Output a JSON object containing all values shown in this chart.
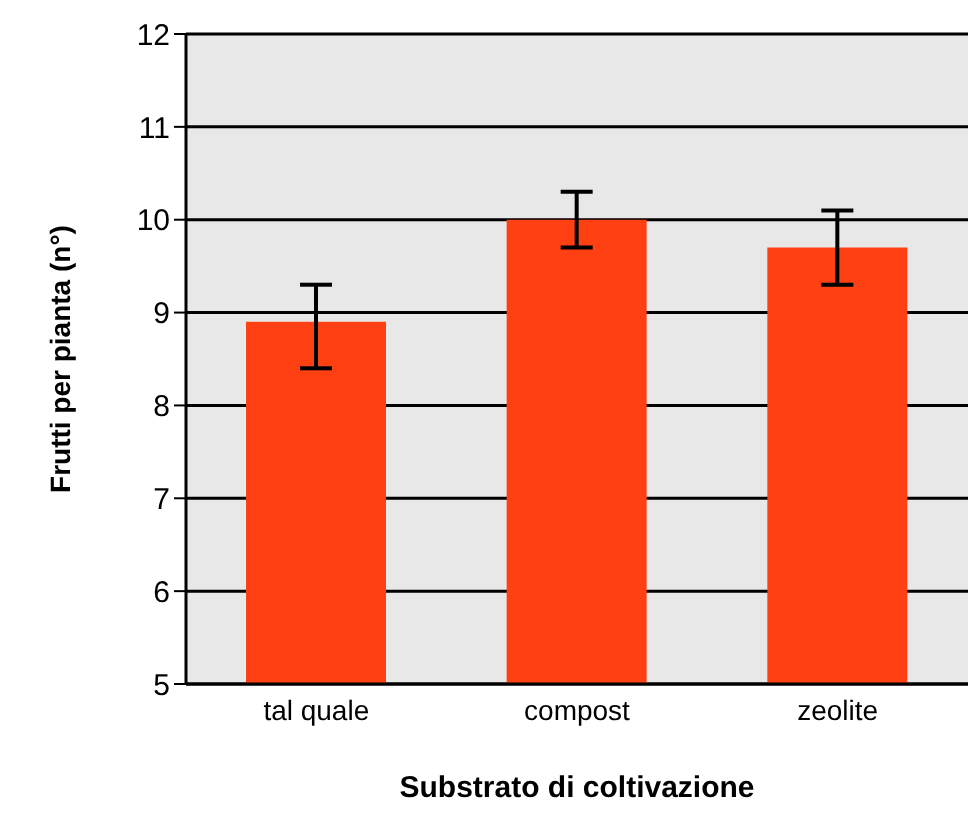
{
  "chart_data": {
    "type": "bar",
    "xlabel": "Substrato di coltivazione",
    "ylabel": "Frutti per pianta (n°)",
    "categories": [
      "tal quale",
      "compost",
      "zeolite"
    ],
    "values": [
      8.9,
      10.0,
      9.7
    ],
    "errors": [
      [
        8.4,
        9.3
      ],
      [
        9.7,
        10.3
      ],
      [
        9.3,
        10.1
      ]
    ],
    "color": "#ff4013",
    "ylim": [
      5,
      12
    ],
    "yticks": [
      5,
      6,
      7,
      8,
      9,
      10,
      11,
      12
    ],
    "grid": "y"
  }
}
